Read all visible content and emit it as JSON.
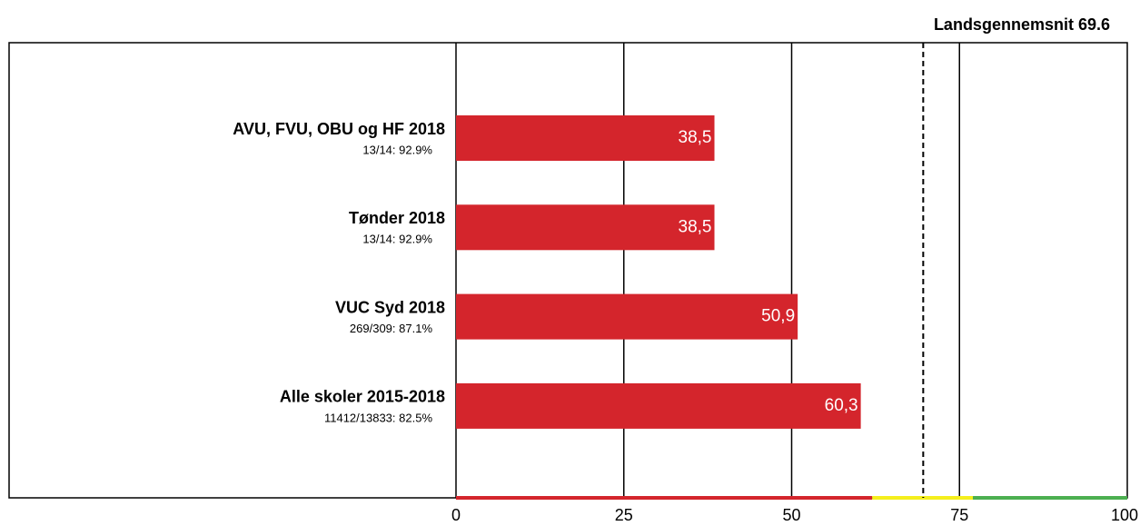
{
  "chart_data": {
    "type": "bar",
    "orientation": "horizontal",
    "annotation": "Landsgennemsnit 69.6",
    "reference_value": 69.6,
    "categories": [
      "AVU, FVU, OBU og HF 2018",
      "Tønder 2018",
      "VUC Syd 2018",
      "Alle skoler 2015-2018"
    ],
    "sublabels": [
      "13/14: 92.9%",
      "13/14: 92.9%",
      "269/309: 87.1%",
      "11412/13833: 82.5%"
    ],
    "values": [
      38.5,
      38.5,
      50.9,
      60.3
    ],
    "value_labels": [
      "38,5",
      "38,5",
      "50,9",
      "60,3"
    ],
    "color": "#d4252c",
    "xlim": [
      0,
      100
    ],
    "xticks": [
      0,
      25,
      50,
      75,
      100
    ],
    "grid": true,
    "bands": [
      {
        "from": 0,
        "to": 62,
        "color": "#d4252c"
      },
      {
        "from": 62,
        "to": 77,
        "color": "#f5ef1c"
      },
      {
        "from": 77,
        "to": 100,
        "color": "#4caf50"
      }
    ]
  }
}
